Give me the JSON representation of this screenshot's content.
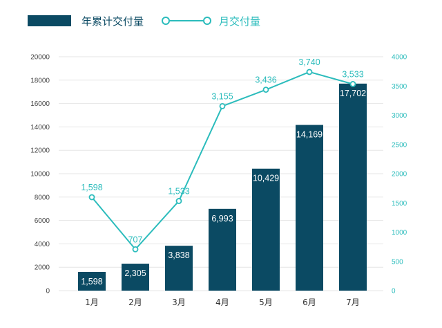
{
  "chart_data": {
    "type": "bar",
    "categories": [
      "1月",
      "2月",
      "3月",
      "4月",
      "5月",
      "6月",
      "7月"
    ],
    "series": [
      {
        "name": "年累计交付量",
        "type": "bar",
        "axis": "left",
        "values": [
          1598,
          2305,
          3838,
          6993,
          10429,
          14169,
          17702
        ],
        "labels": [
          "1,598",
          "2,305",
          "3,838",
          "6,993",
          "10,429",
          "14,169",
          "17,702"
        ]
      },
      {
        "name": "月交付量",
        "type": "line",
        "axis": "right",
        "values": [
          1598,
          707,
          1533,
          3155,
          3436,
          3740,
          3533
        ],
        "labels": [
          "1,598",
          "707",
          "1,533",
          "3,155",
          "3,436",
          "3,740",
          "3,533"
        ]
      }
    ],
    "y_left": {
      "range": [
        0,
        20000
      ],
      "ticks": [
        "0",
        "2000",
        "4000",
        "6000",
        "8000",
        "10000",
        "12000",
        "14000",
        "16000",
        "18000",
        "20000"
      ]
    },
    "y_right": {
      "range": [
        0,
        4000
      ],
      "ticks": [
        "0",
        "500",
        "1000",
        "1500",
        "2000",
        "2500",
        "3000",
        "3500",
        "4000"
      ]
    },
    "grid": true,
    "legend_position": "top-left",
    "colors": {
      "bar": "#0b4a63",
      "line": "#2bbcbc",
      "left_axis_text": "#444444",
      "right_axis_text": "#2bbcbc",
      "grid": "#e6e6e6"
    }
  }
}
